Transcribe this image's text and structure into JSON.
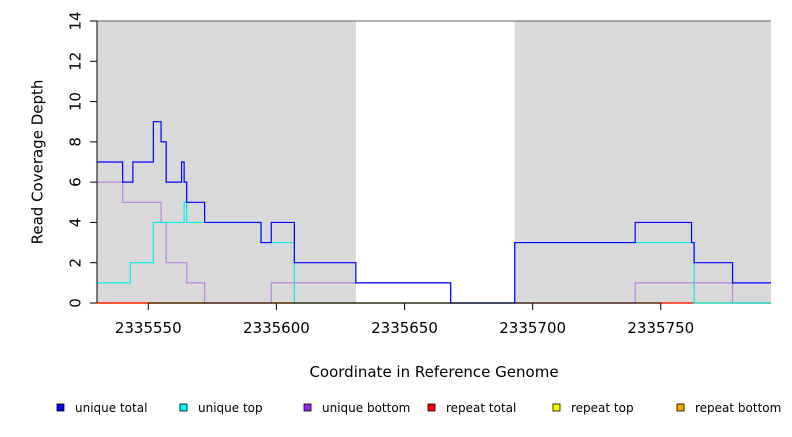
{
  "chart_data": {
    "type": "line",
    "xlabel": "Coordinate in Reference Genome",
    "ylabel": "Read Coverage Depth",
    "xlim": [
      2335530,
      2335793
    ],
    "ylim": [
      0,
      14
    ],
    "x_ticks": [
      2335550,
      2335600,
      2335650,
      2335700,
      2335750
    ],
    "x_tick_labels": [
      "2335550",
      "2335600",
      "2335650",
      "2335700",
      "2335750"
    ],
    "y_ticks": [
      0,
      2,
      4,
      6,
      8,
      10,
      12,
      14
    ],
    "y_tick_labels": [
      "0",
      "2",
      "4",
      "6",
      "8",
      "10",
      "12",
      "14"
    ],
    "grid": false,
    "legend_position": "bottom",
    "shaded_regions": [
      {
        "x0": 2335530,
        "x1": 2335631,
        "color": "#d9d9d9"
      },
      {
        "x0": 2335693,
        "x1": 2335793,
        "color": "#d9d9d9"
      }
    ],
    "series": [
      {
        "name": "unique total",
        "color": "#0000ff",
        "legend_color": "#0000ee",
        "steps": [
          [
            2335530,
            7
          ],
          [
            2335540,
            6
          ],
          [
            2335544,
            7
          ],
          [
            2335552,
            9
          ],
          [
            2335555,
            8
          ],
          [
            2335557,
            6
          ],
          [
            2335563,
            7
          ],
          [
            2335564,
            6
          ],
          [
            2335565,
            5
          ],
          [
            2335572,
            4
          ],
          [
            2335594,
            3
          ],
          [
            2335598,
            4
          ],
          [
            2335607,
            2
          ],
          [
            2335631,
            1
          ],
          [
            2335668,
            0
          ],
          [
            2335693,
            3
          ],
          [
            2335740,
            4
          ],
          [
            2335762,
            3
          ],
          [
            2335763,
            2
          ],
          [
            2335778,
            1
          ],
          [
            2335793,
            1
          ]
        ]
      },
      {
        "name": "unique top",
        "color": "#00eeee",
        "legend_color": "#00ffff",
        "steps": [
          [
            2335530,
            1
          ],
          [
            2335543,
            2
          ],
          [
            2335552,
            4
          ],
          [
            2335564,
            5
          ],
          [
            2335565,
            4
          ],
          [
            2335594,
            3
          ],
          [
            2335607,
            0
          ],
          [
            2335693,
            3
          ],
          [
            2335763,
            0
          ],
          [
            2335793,
            0
          ]
        ]
      },
      {
        "name": "unique bottom",
        "color": "#b983e8",
        "legend_color": "#a020f0",
        "steps": [
          [
            2335530,
            6
          ],
          [
            2335540,
            5
          ],
          [
            2335555,
            4
          ],
          [
            2335557,
            2
          ],
          [
            2335565,
            1
          ],
          [
            2335572,
            0
          ],
          [
            2335598,
            1
          ],
          [
            2335668,
            0
          ],
          [
            2335740,
            1
          ],
          [
            2335778,
            0
          ],
          [
            2335793,
            0
          ]
        ]
      },
      {
        "name": "repeat total",
        "color": "#ff0000",
        "legend_color": "#ff0000",
        "steps": [
          [
            2335530,
            0
          ],
          [
            2335793,
            0
          ]
        ]
      },
      {
        "name": "repeat top",
        "color": "#ffff00",
        "legend_color": "#ffff00",
        "steps": [
          [
            2335530,
            0
          ],
          [
            2335793,
            0
          ]
        ]
      },
      {
        "name": "repeat bottom",
        "color": "#ffa500",
        "legend_color": "#ffa500",
        "steps": [
          [
            2335530,
            0
          ],
          [
            2335631,
            0
          ]
        ]
      }
    ]
  }
}
